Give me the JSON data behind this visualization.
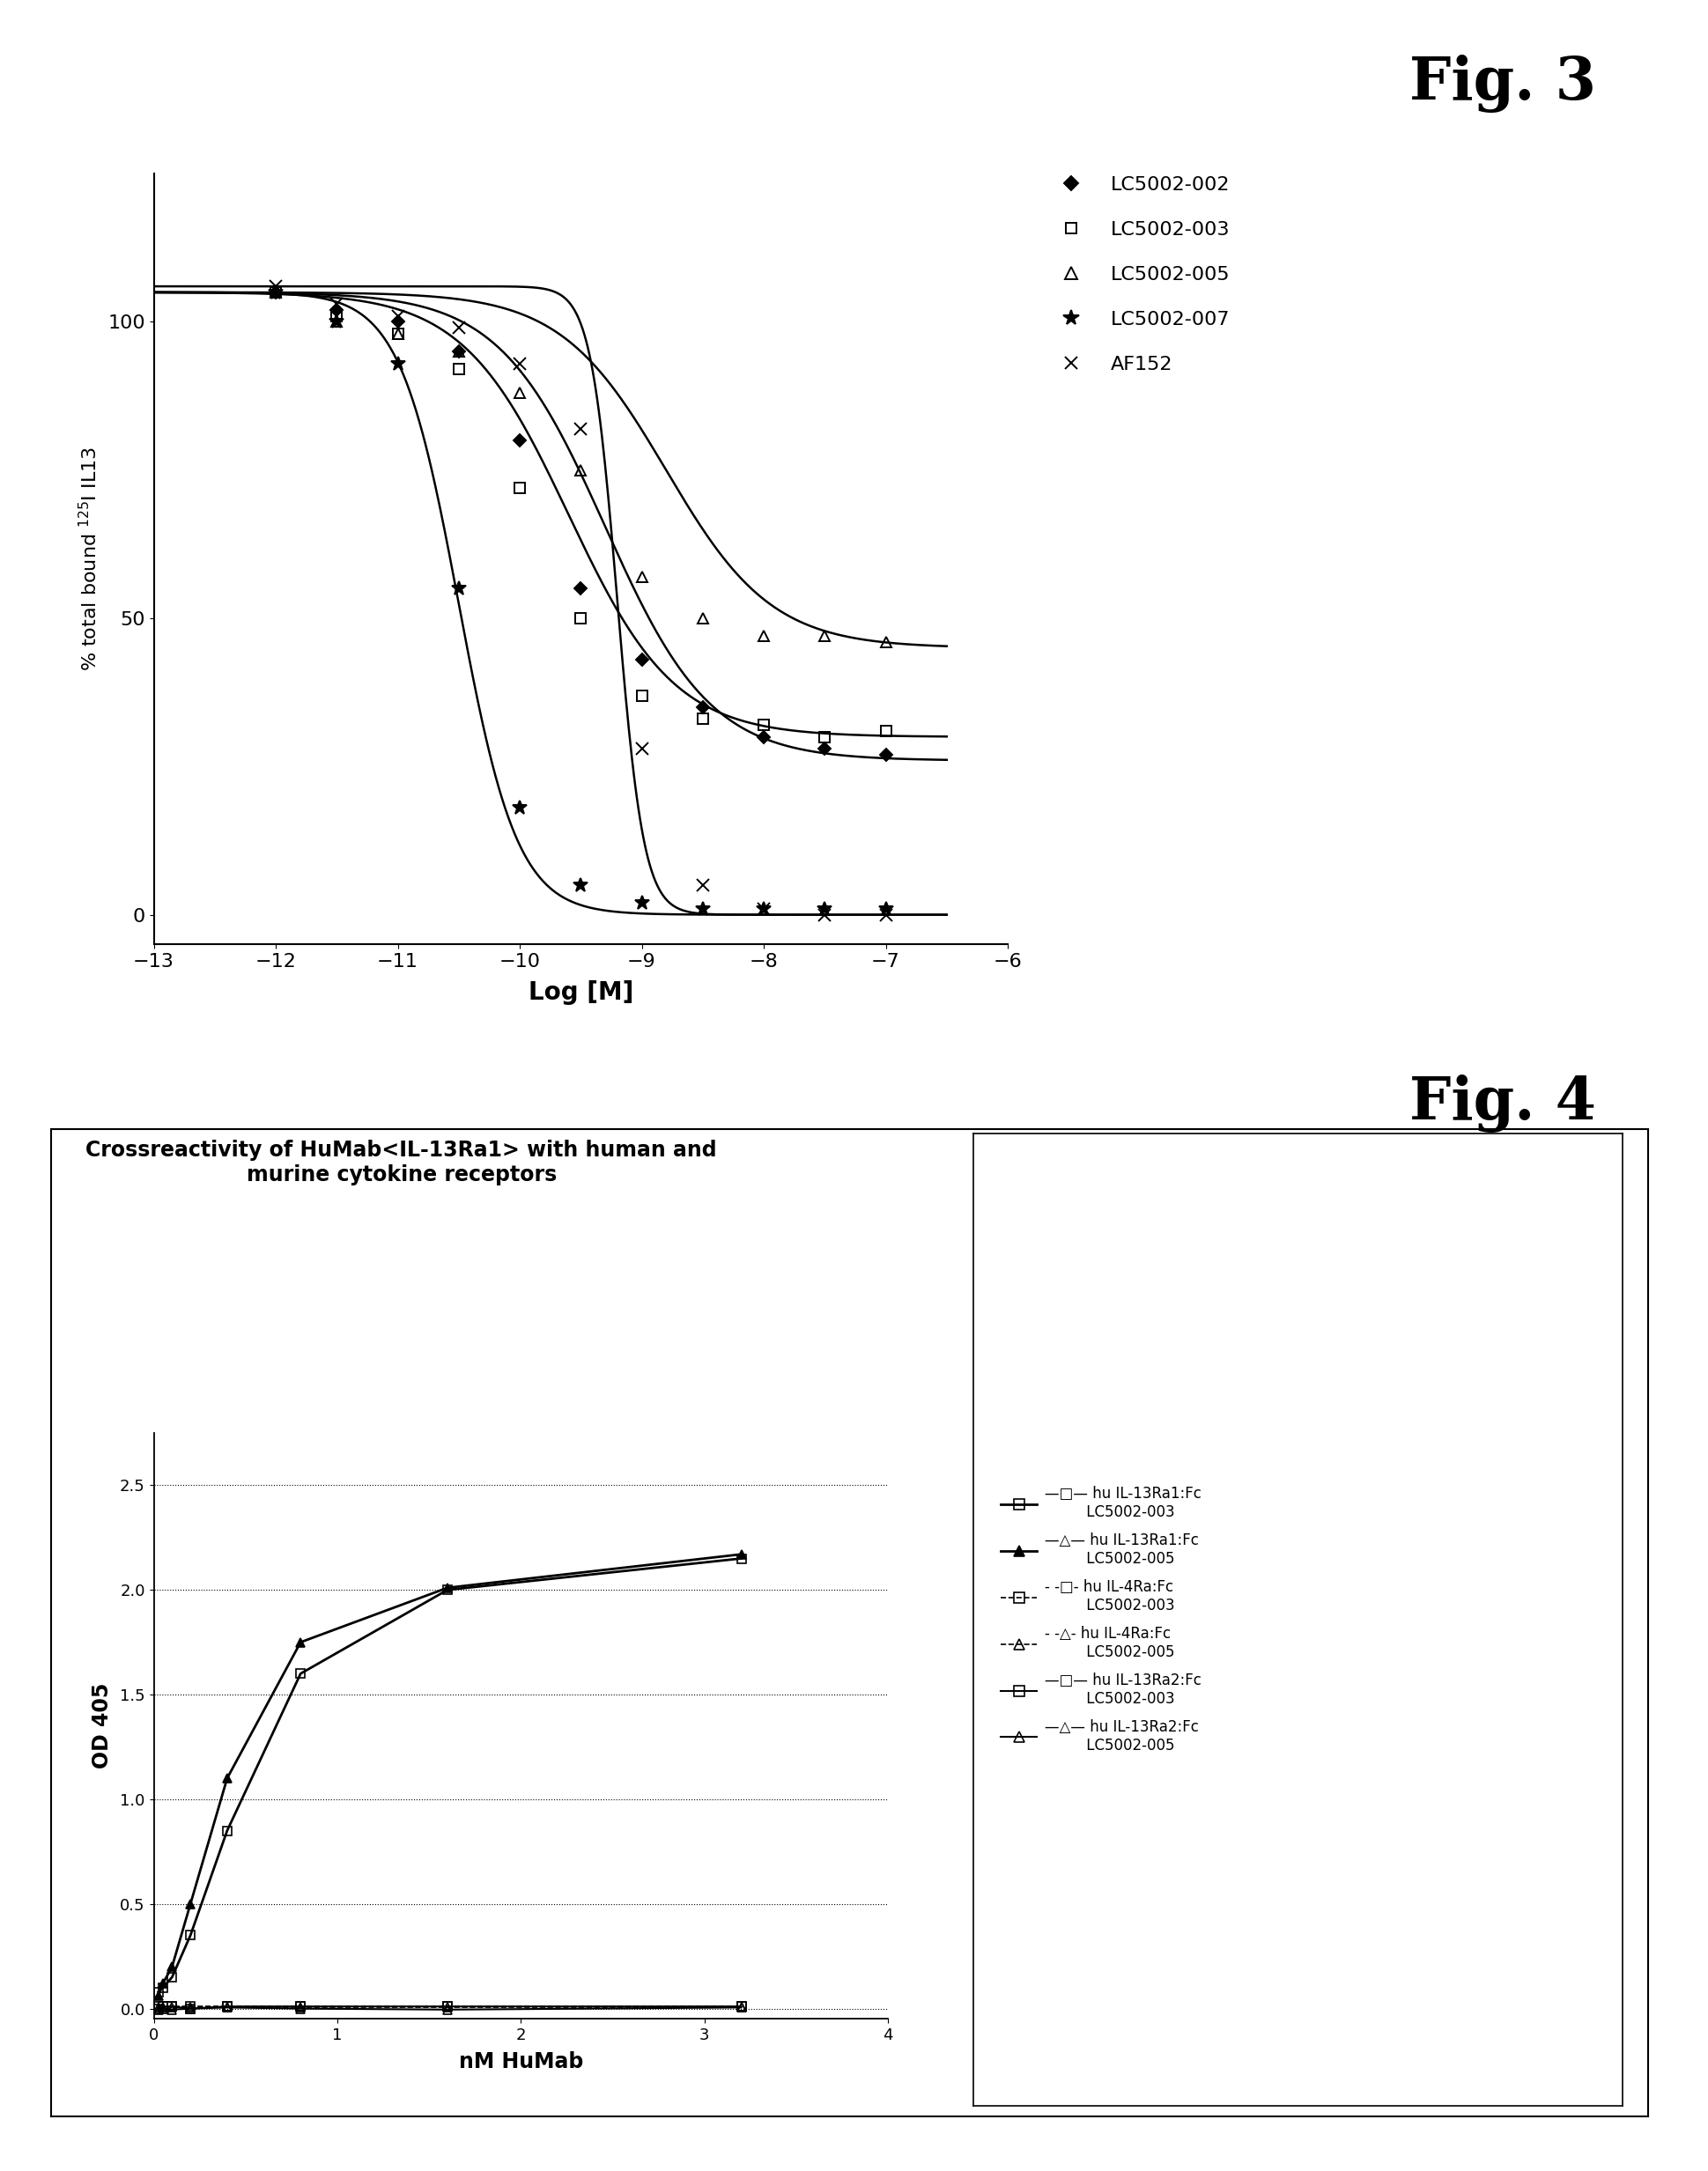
{
  "fig3": {
    "fig_label": "Fig. 3",
    "xlabel": "Log [M]",
    "ylabel": "% total bound $^{125}$I IL13",
    "xlim": [
      -13,
      -6
    ],
    "ylim": [
      -5,
      125
    ],
    "xticks": [
      -13,
      -12,
      -11,
      -10,
      -9,
      -8,
      -7,
      -6
    ],
    "yticks": [
      0,
      50,
      100
    ],
    "series": [
      {
        "label": "LC5002-002",
        "marker": "D",
        "markersize": 7,
        "fillstyle": "full",
        "x_data": [
          -12.0,
          -11.5,
          -11.0,
          -10.5,
          -10.0,
          -9.5,
          -9.0,
          -8.5,
          -8.0,
          -7.5,
          -7.0
        ],
        "y_data": [
          105,
          102,
          100,
          95,
          80,
          55,
          43,
          35,
          30,
          28,
          27
        ],
        "ec50": -9.3,
        "top": 105,
        "bottom": 26,
        "hill": 1.0
      },
      {
        "label": "LC5002-003",
        "marker": "s",
        "markersize": 8,
        "fillstyle": "none",
        "x_data": [
          -12.0,
          -11.5,
          -11.0,
          -10.5,
          -10.0,
          -9.5,
          -9.0,
          -8.5,
          -8.0,
          -7.5,
          -7.0
        ],
        "y_data": [
          105,
          101,
          98,
          92,
          72,
          50,
          37,
          33,
          32,
          30,
          31
        ],
        "ec50": -9.6,
        "top": 105,
        "bottom": 30,
        "hill": 1.0
      },
      {
        "label": "LC5002-005",
        "marker": "^",
        "markersize": 9,
        "fillstyle": "none",
        "x_data": [
          -12.0,
          -11.5,
          -11.0,
          -10.5,
          -10.0,
          -9.5,
          -9.0,
          -8.5,
          -8.0,
          -7.5,
          -7.0
        ],
        "y_data": [
          105,
          100,
          98,
          95,
          88,
          75,
          57,
          50,
          47,
          47,
          46
        ],
        "ec50": -8.8,
        "top": 105,
        "bottom": 45,
        "hill": 1.0
      },
      {
        "label": "LC5002-007",
        "marker": "*",
        "markersize": 12,
        "fillstyle": "full",
        "x_data": [
          -12.0,
          -11.5,
          -11.0,
          -10.5,
          -10.0,
          -9.5,
          -9.0,
          -8.5,
          -8.0,
          -7.5,
          -7.0
        ],
        "y_data": [
          105,
          100,
          93,
          55,
          18,
          5,
          2,
          1,
          1,
          1,
          1
        ],
        "ec50": -10.5,
        "top": 105,
        "bottom": 0,
        "hill": 1.8
      },
      {
        "label": "AF152",
        "marker": "x",
        "markersize": 10,
        "fillstyle": "full",
        "x_data": [
          -12.0,
          -11.5,
          -11.0,
          -10.5,
          -10.0,
          -9.5,
          -9.0,
          -8.5,
          -8.0,
          -7.5,
          -7.0
        ],
        "y_data": [
          106,
          103,
          101,
          99,
          93,
          82,
          28,
          5,
          1,
          0,
          0
        ],
        "ec50": -9.2,
        "top": 106,
        "bottom": 0,
        "hill": 4.0
      }
    ],
    "legend": [
      {
        "label": "LC5002-002",
        "marker": "D",
        "fillstyle": "full",
        "markersize": 8
      },
      {
        "label": "LC5002-003",
        "marker": "s",
        "fillstyle": "none",
        "markersize": 9
      },
      {
        "label": "LC5002-005",
        "marker": "^",
        "fillstyle": "none",
        "markersize": 10
      },
      {
        "label": "LC5002-007",
        "marker": "*",
        "fillstyle": "full",
        "markersize": 13
      },
      {
        "label": "AF152",
        "marker": "x",
        "fillstyle": "full",
        "markersize": 10
      }
    ]
  },
  "fig4": {
    "fig_label": "Fig. 4",
    "inner_title": "Crossreactivity of HuMab<IL-13Ra1> with human and\nmurine cytokine receptors",
    "xlabel": "nM HuMab",
    "ylabel": "OD 405",
    "xlim": [
      0,
      4
    ],
    "ylim": [
      -0.05,
      2.75
    ],
    "xticks": [
      0,
      1,
      2,
      3,
      4
    ],
    "yticks": [
      0.0,
      0.5,
      1.0,
      1.5,
      2.0,
      2.5
    ],
    "series": [
      {
        "label_line1": "—□— hu IL-13Ra1:Fc",
        "label_line2": "         LC5002-003",
        "marker": "s",
        "markersize": 7,
        "fillstyle": "none",
        "linestyle": "-",
        "linewidth": 2.0,
        "x_data": [
          0.025,
          0.05,
          0.1,
          0.2,
          0.4,
          0.8,
          1.6,
          3.2
        ],
        "y_data": [
          0.08,
          0.1,
          0.15,
          0.35,
          0.85,
          1.6,
          2.0,
          2.15
        ]
      },
      {
        "label_line1": "—△— hu IL-13Ra1:Fc",
        "label_line2": "         LC5002-005",
        "marker": "^",
        "markersize": 7,
        "fillstyle": "full",
        "linestyle": "-",
        "linewidth": 2.0,
        "x_data": [
          0.025,
          0.05,
          0.1,
          0.2,
          0.4,
          0.8,
          1.6,
          3.2
        ],
        "y_data": [
          0.06,
          0.12,
          0.2,
          0.5,
          1.1,
          1.75,
          2.01,
          2.17
        ]
      },
      {
        "label_line1": "- -□- hu IL-4Ra:Fc",
        "label_line2": "         LC5002-003",
        "marker": "s",
        "markersize": 7,
        "fillstyle": "none",
        "linestyle": "--",
        "linewidth": 1.2,
        "x_data": [
          0.025,
          0.05,
          0.1,
          0.2,
          0.4,
          0.8,
          1.6,
          3.2
        ],
        "y_data": [
          0.01,
          0.01,
          0.01,
          0.01,
          0.01,
          0.01,
          0.01,
          0.01
        ]
      },
      {
        "label_line1": "- -△- hu IL-4Ra:Fc",
        "label_line2": "         LC5002-005",
        "marker": "^",
        "markersize": 7,
        "fillstyle": "none",
        "linestyle": "--",
        "linewidth": 1.2,
        "x_data": [
          0.025,
          0.05,
          0.1,
          0.2,
          0.4,
          0.8,
          1.6,
          3.2
        ],
        "y_data": [
          0.005,
          0.005,
          0.005,
          0.005,
          0.005,
          0.005,
          0.005,
          0.005
        ]
      },
      {
        "label_line1": "—□— hu IL-13Ra2:Fc",
        "label_line2": "         LC5002-003",
        "marker": "s",
        "markersize": 7,
        "fillstyle": "none",
        "linestyle": "-",
        "linewidth": 1.5,
        "x_data": [
          0.025,
          0.05,
          0.1,
          0.2,
          0.4,
          0.8,
          1.6,
          3.2
        ],
        "y_data": [
          0.0,
          0.01,
          0.01,
          0.0,
          0.01,
          0.01,
          0.01,
          0.01
        ]
      },
      {
        "label_line1": "—△— hu IL-13Ra2:Fc",
        "label_line2": "         LC5002-005",
        "marker": "^",
        "markersize": 7,
        "fillstyle": "none",
        "linestyle": "-",
        "linewidth": 1.5,
        "x_data": [
          0.025,
          0.05,
          0.1,
          0.2,
          0.4,
          0.8,
          1.6,
          3.2
        ],
        "y_data": [
          -0.005,
          0.0,
          -0.005,
          0.0,
          0.005,
          0.0,
          -0.005,
          0.005
        ]
      }
    ]
  }
}
